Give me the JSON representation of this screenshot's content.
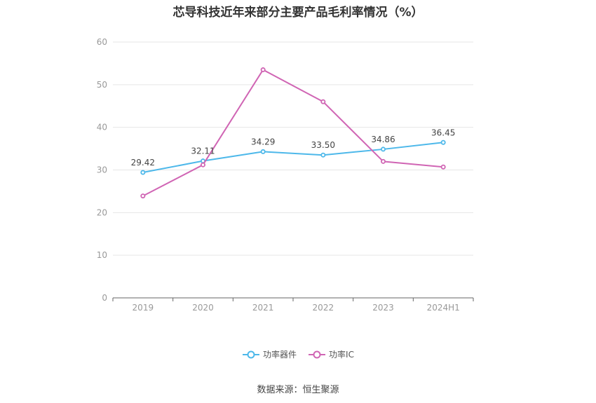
{
  "header": {
    "title": "芯导科技近年来部分主要产品毛利率情况（%）"
  },
  "footer": {
    "source": "数据来源：恒生聚源"
  },
  "chart_data": {
    "type": "line",
    "title": "芯导科技近年来部分主要产品毛利率情况（%）",
    "xlabel": "",
    "ylabel": "",
    "categories": [
      "2019",
      "2020",
      "2021",
      "2022",
      "2023",
      "2024H1"
    ],
    "ylim": [
      0,
      60
    ],
    "yticks": [
      0,
      10,
      20,
      30,
      40,
      50,
      60
    ],
    "grid": true,
    "legend_position": "bottom-center",
    "series": [
      {
        "name": "功率器件",
        "color": "#4db8ea",
        "values": [
          29.42,
          32.11,
          34.29,
          33.5,
          34.86,
          36.45
        ],
        "labels": [
          "29.42",
          "32.11",
          "34.29",
          "33.50",
          "34.86",
          "36.45"
        ],
        "show_labels": true
      },
      {
        "name": "功率IC",
        "color": "#d065b4",
        "values": [
          23.9,
          31.2,
          53.5,
          46.0,
          32.0,
          30.7
        ],
        "show_labels": false
      }
    ]
  }
}
